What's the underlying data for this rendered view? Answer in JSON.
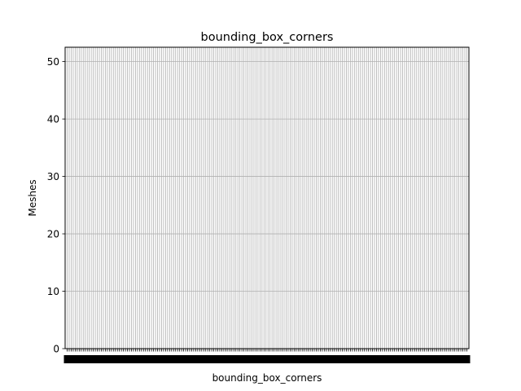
{
  "chart_data": {
    "type": "bar",
    "title": "bounding_box_corners",
    "xlabel": "bounding_box_corners",
    "ylabel": "Meshes",
    "ylim": [
      0,
      52.5
    ],
    "yticks": [
      0,
      10,
      20,
      30,
      40,
      50
    ],
    "grid": true,
    "category_count": 200,
    "values": []
  }
}
